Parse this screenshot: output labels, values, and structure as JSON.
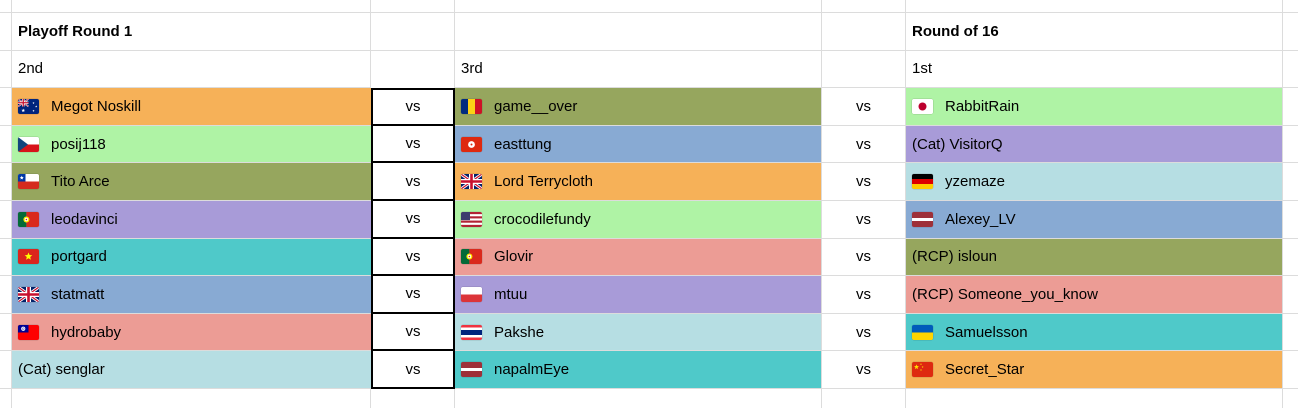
{
  "sheet": {
    "title_left": "Playoff Round 1",
    "title_right": "Round of 16",
    "seed_left": "2nd",
    "seed_mid": "3rd",
    "seed_right": "1st",
    "vs": "vs"
  },
  "palette": {
    "orange": "#f6b158",
    "lightgreen": "#aff3a5",
    "olive": "#96a65e",
    "purple": "#a89bd8",
    "teal": "#4fc9c9",
    "steelblue": "#88aad3",
    "salmon": "#ec9c95",
    "lightcyan": "#b6dee3",
    "gridline": "#dcdcdc",
    "vs_border": "#000000"
  },
  "matches": [
    {
      "left": {
        "flag": "australia",
        "name": "Megot Noskill",
        "color": "orange"
      },
      "mid": {
        "flag": "romania",
        "name": "game__over",
        "color": "olive"
      },
      "right": {
        "flag": "japan",
        "name": "RabbitRain",
        "color": "lightgreen"
      }
    },
    {
      "left": {
        "flag": "czechia",
        "name": "posij118",
        "color": "lightgreen"
      },
      "mid": {
        "flag": "hong-kong",
        "name": "easttung",
        "color": "steelblue"
      },
      "right": {
        "flag": "",
        "name": "(Cat) VisitorQ",
        "color": "purple"
      }
    },
    {
      "left": {
        "flag": "chile",
        "name": "Tito Arce",
        "color": "olive"
      },
      "mid": {
        "flag": "united-kingdom",
        "name": "Lord Terrycloth",
        "color": "orange"
      },
      "right": {
        "flag": "germany",
        "name": "yzemaze",
        "color": "lightcyan"
      }
    },
    {
      "left": {
        "flag": "portugal",
        "name": "leodavinci",
        "color": "purple"
      },
      "mid": {
        "flag": "united-states",
        "name": "crocodilefundy",
        "color": "lightgreen"
      },
      "right": {
        "flag": "latvia",
        "name": "Alexey_LV",
        "color": "steelblue"
      }
    },
    {
      "left": {
        "flag": "vietnam",
        "name": "portgard",
        "color": "teal"
      },
      "mid": {
        "flag": "portugal",
        "name": "Glovir",
        "color": "salmon"
      },
      "right": {
        "flag": "",
        "name": "(RCP) isloun",
        "color": "olive"
      }
    },
    {
      "left": {
        "flag": "united-kingdom",
        "name": "statmatt",
        "color": "steelblue"
      },
      "mid": {
        "flag": "poland",
        "name": "mtuu",
        "color": "purple"
      },
      "right": {
        "flag": "",
        "name": "(RCP) Someone_you_know",
        "color": "salmon"
      }
    },
    {
      "left": {
        "flag": "taiwan",
        "name": "hydrobaby",
        "color": "salmon"
      },
      "mid": {
        "flag": "thailand",
        "name": "Pakshe",
        "color": "lightcyan"
      },
      "right": {
        "flag": "ukraine",
        "name": "Samuelsson",
        "color": "teal"
      }
    },
    {
      "left": {
        "flag": "",
        "name": "(Cat) senglar",
        "color": "lightcyan"
      },
      "mid": {
        "flag": "latvia",
        "name": "napalmEye",
        "color": "teal"
      },
      "right": {
        "flag": "china",
        "name": "Secret_Star",
        "color": "orange"
      }
    }
  ]
}
